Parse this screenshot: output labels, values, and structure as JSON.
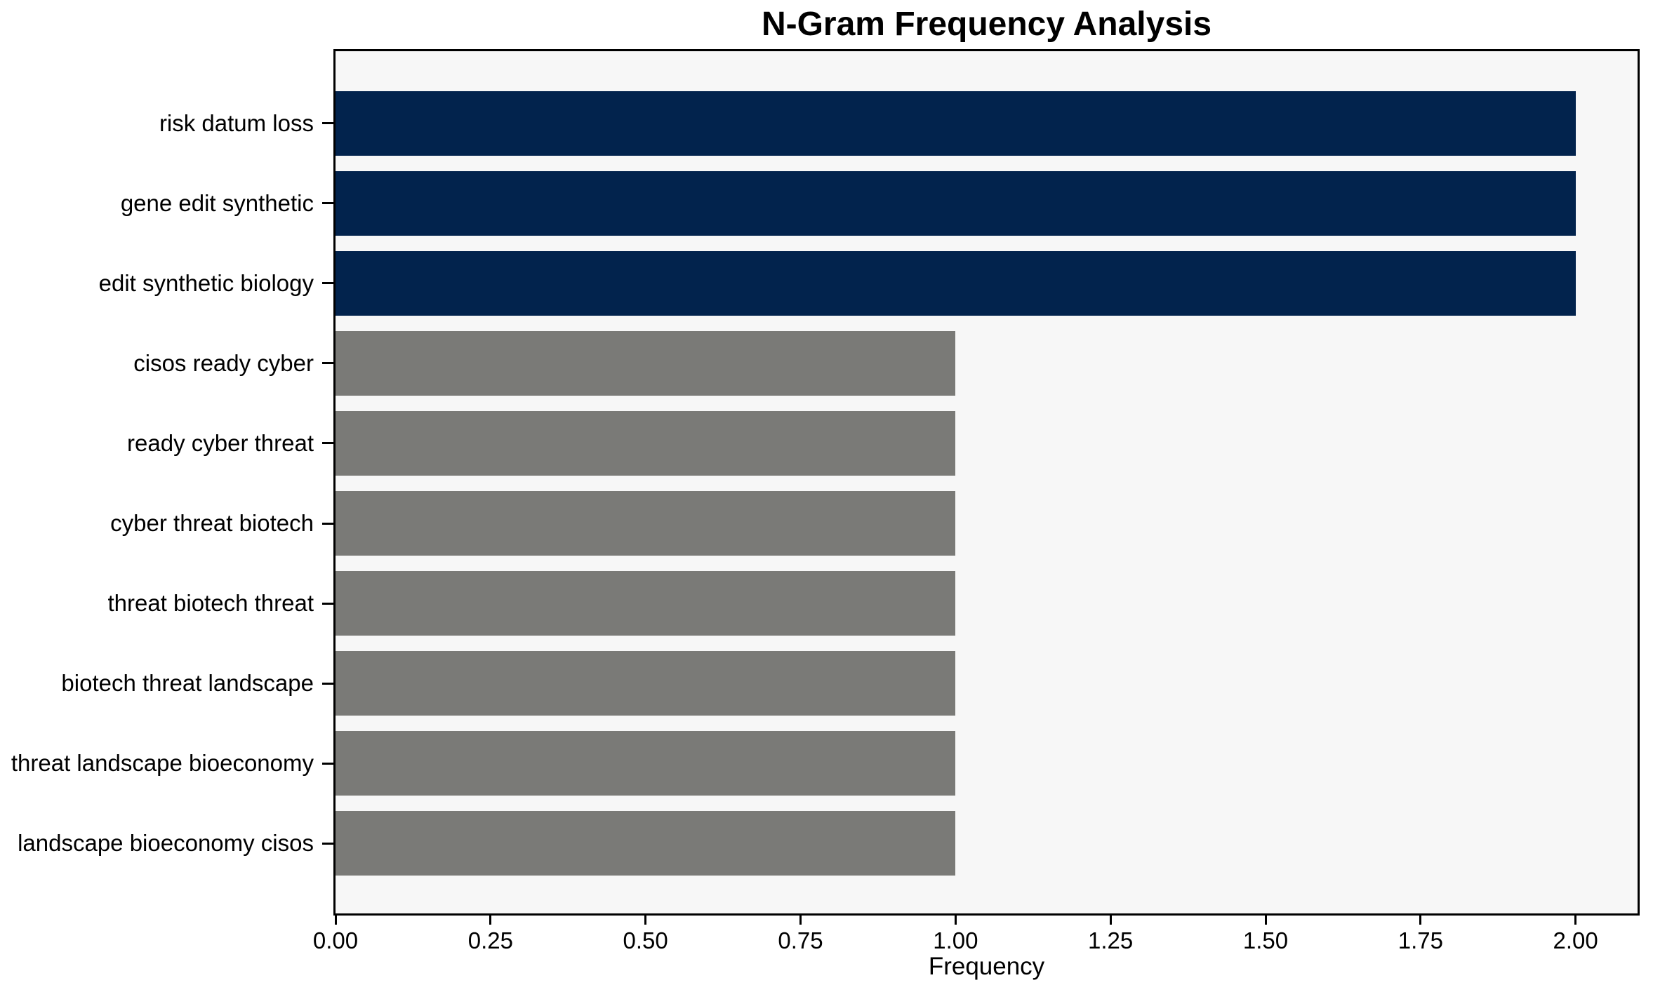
{
  "chart_data": {
    "type": "bar",
    "orientation": "horizontal",
    "title": "N-Gram Frequency Analysis",
    "xlabel": "Frequency",
    "ylabel": "",
    "categories": [
      "risk datum loss",
      "gene edit synthetic",
      "edit synthetic biology",
      "cisos ready cyber",
      "ready cyber threat",
      "cyber threat biotech",
      "threat biotech threat",
      "biotech threat landscape",
      "threat landscape bioeconomy",
      "landscape bioeconomy cisos"
    ],
    "values": [
      2,
      2,
      2,
      1,
      1,
      1,
      1,
      1,
      1,
      1
    ],
    "bar_colors": [
      "#02234d",
      "#02234d",
      "#02234d",
      "#7a7a77",
      "#7a7a77",
      "#7a7a77",
      "#7a7a77",
      "#7a7a77",
      "#7a7a77",
      "#7a7a77"
    ],
    "xticks": [
      "0.00",
      "0.25",
      "0.50",
      "0.75",
      "1.00",
      "1.25",
      "1.50",
      "1.75",
      "2.00"
    ],
    "xtick_values": [
      0,
      0.25,
      0.5,
      0.75,
      1.0,
      1.25,
      1.5,
      1.75,
      2.0
    ],
    "xlim": [
      0,
      2.1
    ],
    "grid": false,
    "legend": "none",
    "colors": {
      "high_frequency_bar": "#02234d",
      "low_frequency_bar": "#7a7a77",
      "plot_background": "#f7f7f7",
      "figure_background": "#ffffff",
      "spine": "#000000",
      "text": "#000000"
    }
  }
}
